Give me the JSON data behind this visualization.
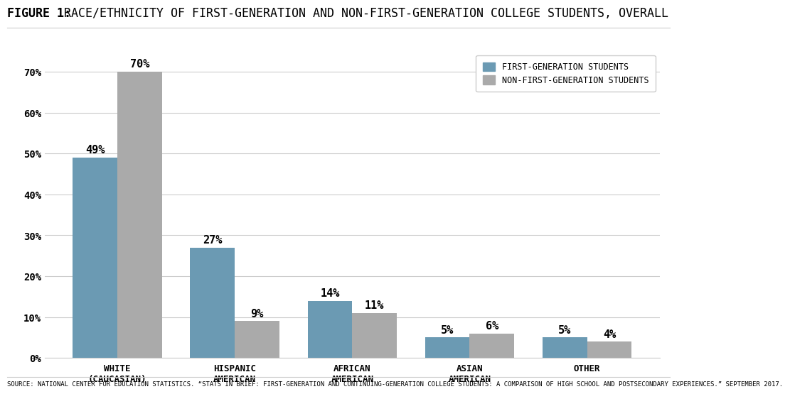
{
  "title_bold": "FIGURE 1:",
  "title_rest": " RACE/ETHNICITY OF FIRST-GENERATION AND NON-FIRST-GENERATION COLLEGE STUDENTS, OVERALL",
  "categories": [
    "WHITE\n(CAUCASIAN)",
    "HISPANIC\nAMERICAN",
    "AFRICAN\nAMERICAN",
    "ASIAN\nAMERICAN",
    "OTHER"
  ],
  "first_gen": [
    49,
    27,
    14,
    5,
    5
  ],
  "non_first_gen": [
    70,
    9,
    11,
    6,
    4
  ],
  "first_gen_color": "#6b9ab3",
  "non_first_gen_color": "#aaaaaa",
  "ylim": [
    0,
    75
  ],
  "yticks": [
    0,
    10,
    20,
    30,
    40,
    50,
    60,
    70
  ],
  "ytick_labels": [
    "0%",
    "10%",
    "20%",
    "30%",
    "40%",
    "50%",
    "60%",
    "70%"
  ],
  "legend_labels": [
    "FIRST-GENERATION STUDENTS",
    "NON-FIRST-GENERATION STUDENTS"
  ],
  "source_text": "SOURCE: NATIONAL CENTER FOR EDUCATION STATISTICS. “STATS IN BRIEF: FIRST-GENERATION AND CONTINUING-GENERATION COLLEGE STUDENTS: A COMPARISON OF HIGH SCHOOL AND POSTSECONDARY EXPERIENCES.” SEPTEMBER 2017.",
  "background_color": "#ffffff",
  "bar_width": 0.38,
  "grid_color": "#cccccc",
  "label_fontsize": 11,
  "tick_fontsize": 10,
  "title_fontsize": 12,
  "source_fontsize": 6.5
}
